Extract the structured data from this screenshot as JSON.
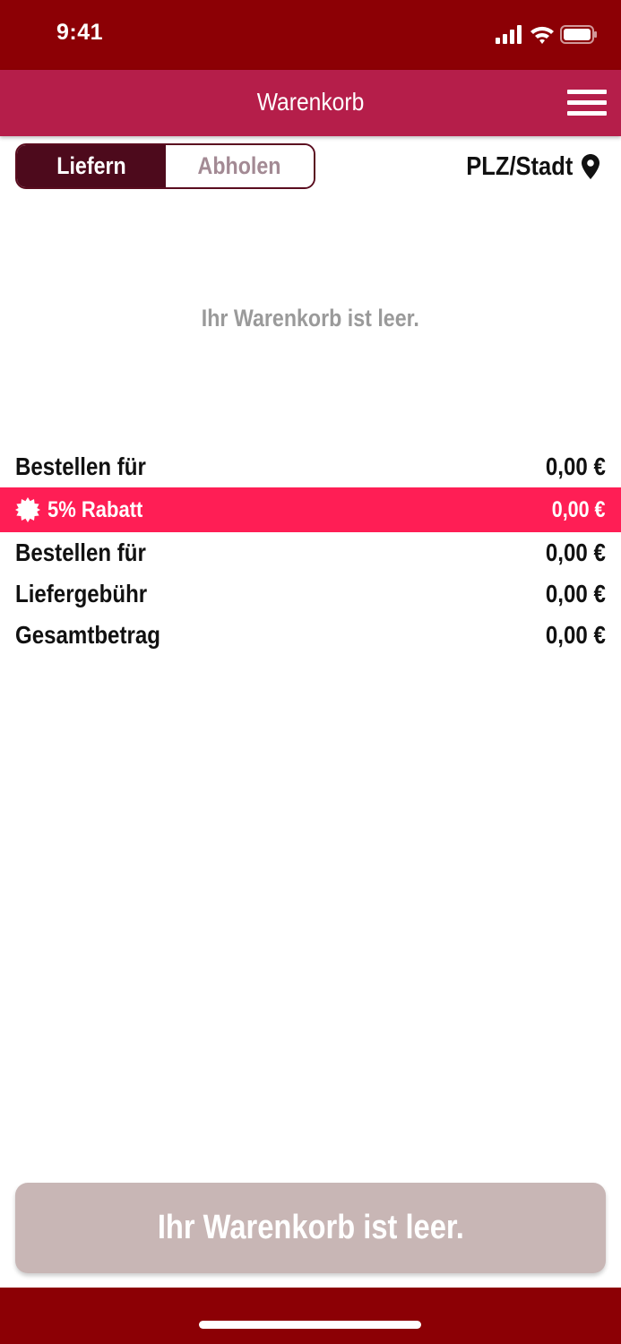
{
  "status_bar": {
    "time": "9:41"
  },
  "header": {
    "title": "Warenkorb"
  },
  "delivery_toggle": {
    "options": [
      "Liefern",
      "Abholen"
    ],
    "selected": "Liefern"
  },
  "location": {
    "label": "PLZ/Stadt"
  },
  "cart": {
    "empty_message": "Ihr Warenkorb ist leer."
  },
  "summary": {
    "rows": [
      {
        "label": "Bestellen für",
        "value": "0,00 €"
      },
      {
        "label": "5% Rabatt",
        "value": "0,00 €"
      },
      {
        "label": "Bestellen für",
        "value": "0,00 €"
      },
      {
        "label": "Liefergebühr",
        "value": "0,00 €"
      },
      {
        "label": "Gesamtbetrag",
        "value": "0,00 €"
      }
    ]
  },
  "checkout_button": {
    "label": "Ihr Warenkorb ist leer."
  },
  "colors": {
    "status_bar": "#8c0005",
    "header": "#b51e4a",
    "toggle_active": "#4d0a1c",
    "discount": "#ff1e55",
    "button_disabled": "#c8b6b5"
  },
  "icons": [
    "signal-icon",
    "wifi-icon",
    "battery-icon",
    "hamburger-menu-icon",
    "location-pin-icon",
    "discount-badge-icon"
  ]
}
